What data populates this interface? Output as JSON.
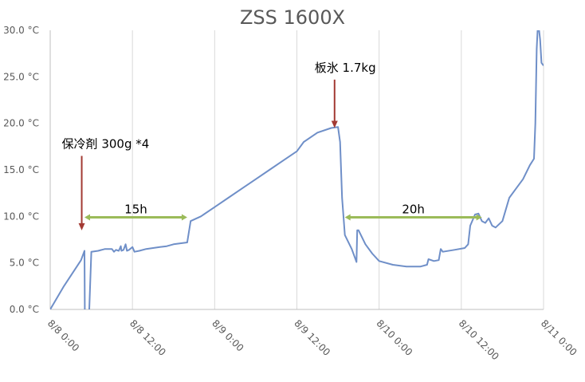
{
  "chart_data": {
    "type": "line",
    "title": "ZSS 1600X",
    "xlabel": "",
    "ylabel": "",
    "x_range_hours": [
      0,
      72
    ],
    "ylim": [
      0,
      30
    ],
    "grid": "vertical",
    "y_ticks": [
      "0.0 °C",
      "5.0 °C",
      "10.0 °C",
      "15.0 °C",
      "20.0 °C",
      "25.0 °C",
      "30.0 °C"
    ],
    "x_ticks": [
      "8/8 0:00",
      "8/8 12:00",
      "8/9 0:00",
      "8/9 12:00",
      "8/10 0:00",
      "8/10 12:00",
      "8/11 0:00"
    ],
    "series": [
      {
        "color": "#6f8fc8",
        "points": [
          [
            0,
            0
          ],
          [
            2,
            2.5
          ],
          [
            4.5,
            5.3
          ],
          [
            5,
            6.3
          ],
          [
            5.05,
            0
          ],
          [
            5.15,
            -4
          ],
          [
            5.5,
            -4
          ],
          [
            5.7,
            0
          ],
          [
            6,
            6.2
          ],
          [
            7,
            6.3
          ],
          [
            8,
            6.5
          ],
          [
            9,
            6.5
          ],
          [
            9.3,
            6.2
          ],
          [
            9.6,
            6.4
          ],
          [
            10,
            6.3
          ],
          [
            10.3,
            6.8
          ],
          [
            10.4,
            6.3
          ],
          [
            10.7,
            6.4
          ],
          [
            11,
            7.0
          ],
          [
            11.2,
            6.3
          ],
          [
            11.5,
            6.4
          ],
          [
            12,
            6.7
          ],
          [
            12.3,
            6.2
          ],
          [
            13,
            6.3
          ],
          [
            14,
            6.5
          ],
          [
            15,
            6.6
          ],
          [
            16,
            6.7
          ],
          [
            17,
            6.8
          ],
          [
            18,
            7.0
          ],
          [
            20,
            7.2
          ],
          [
            20.5,
            9.5
          ],
          [
            22,
            10
          ],
          [
            24,
            11
          ],
          [
            26,
            12
          ],
          [
            28,
            13
          ],
          [
            30,
            14
          ],
          [
            32,
            15
          ],
          [
            34,
            16
          ],
          [
            36,
            17
          ],
          [
            37,
            18
          ],
          [
            39,
            19
          ],
          [
            41,
            19.5
          ],
          [
            42,
            19.6
          ],
          [
            42.3,
            18
          ],
          [
            42.6,
            12
          ],
          [
            43,
            8
          ],
          [
            44,
            6.5
          ],
          [
            44.7,
            5.1
          ],
          [
            44.8,
            8.5
          ],
          [
            45,
            8.5
          ],
          [
            46,
            7
          ],
          [
            47,
            6
          ],
          [
            48,
            5.2
          ],
          [
            50,
            4.8
          ],
          [
            52,
            4.6
          ],
          [
            54,
            4.6
          ],
          [
            55,
            4.8
          ],
          [
            55.2,
            5.4
          ],
          [
            56,
            5.2
          ],
          [
            56.7,
            5.3
          ],
          [
            57,
            6.5
          ],
          [
            57.3,
            6.2
          ],
          [
            59,
            6.4
          ],
          [
            60.5,
            6.6
          ],
          [
            61,
            7
          ],
          [
            61.3,
            9
          ],
          [
            62,
            10.2
          ],
          [
            62.5,
            10.3
          ],
          [
            63,
            9.5
          ],
          [
            63.5,
            9.3
          ],
          [
            64,
            9.8
          ],
          [
            64.5,
            9
          ],
          [
            65,
            8.8
          ],
          [
            66,
            9.5
          ],
          [
            67,
            12
          ],
          [
            68,
            13
          ],
          [
            69,
            14
          ],
          [
            70,
            15.5
          ],
          [
            70.6,
            16.2
          ],
          [
            70.8,
            20
          ],
          [
            71,
            28
          ],
          [
            71.2,
            31
          ],
          [
            71.5,
            29
          ],
          [
            71.7,
            26.5
          ],
          [
            72,
            26.2
          ]
        ]
      }
    ],
    "annotations": [
      {
        "text": "保冷剤 300g *4",
        "arrow_x": 4.6,
        "arrow_top": 16.5,
        "arrow_bottom": 8.5
      },
      {
        "text": "板氷 1.7kg",
        "arrow_x": 41.5,
        "arrow_top": 24.7,
        "arrow_bottom": 19.5
      }
    ],
    "spans": [
      {
        "label": "15h",
        "x1": 5,
        "x2": 20,
        "y": 9.9
      },
      {
        "label": "20h",
        "x1": 43,
        "x2": 63,
        "y": 9.9
      }
    ]
  }
}
